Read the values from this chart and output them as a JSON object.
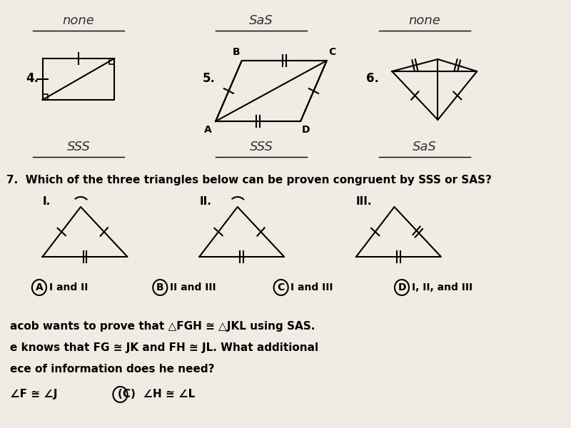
{
  "bg_color": "#f0ece4",
  "title_q7": "7.  Which of the three triangles below can be proven congruent by SSS or SAS?",
  "answers_top": [
    "none",
    "SaS",
    "none"
  ],
  "answers_bottom": [
    "SSS",
    "SSS",
    "SaS"
  ],
  "problem_numbers_top": [
    "4.",
    "5.",
    "6."
  ],
  "roman_numerals": [
    "I.",
    "II.",
    "III."
  ],
  "answer_choices": [
    {
      "letter": "A",
      "text": "I and II"
    },
    {
      "letter": "B",
      "text": "II and III"
    },
    {
      "letter": "C",
      "text": "I and III"
    },
    {
      "letter": "D",
      "text": "I, II, and III"
    }
  ],
  "bottom_text_line1": "acob wants to prove that △FGH ≅ △JKL using SAS.",
  "bottom_text_line2": "e knows that FG ≅ JK and FH ≅ JL. What additional",
  "bottom_text_line3": "ece of information does he need?",
  "bottom_answers": [
    "∠F ≅ ∠J",
    "(C)  ∠H ≅ ∠L"
  ]
}
